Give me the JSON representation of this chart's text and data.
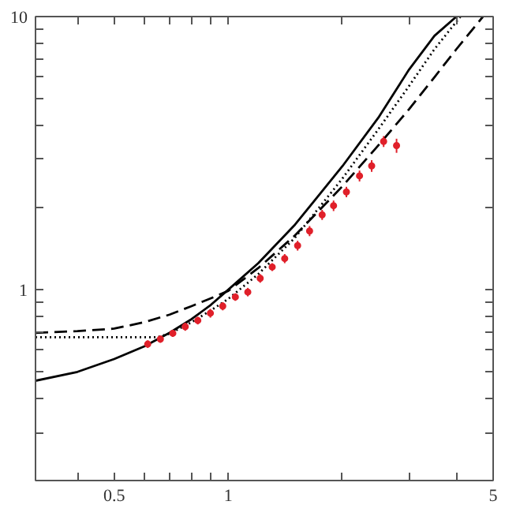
{
  "chart_data": {
    "type": "line",
    "log": "xy",
    "grid": false,
    "xlim": [
      0.31,
      5
    ],
    "ylim": [
      0.2,
      10
    ],
    "xticks": [
      {
        "value": 0.4,
        "label": null
      },
      0.5,
      {
        "value": 0.6,
        "label": null
      },
      {
        "value": 0.7,
        "label": null
      },
      {
        "value": 0.8,
        "label": null
      },
      {
        "value": 0.9,
        "label": null
      },
      1,
      {
        "value": 2,
        "label": null
      },
      {
        "value": 3,
        "label": null
      },
      {
        "value": 4,
        "label": null
      },
      5
    ],
    "yticks": [
      {
        "value": 0.3,
        "label": null
      },
      {
        "value": 0.4,
        "label": null
      },
      {
        "value": 0.5,
        "label": null
      },
      {
        "value": 0.6,
        "label": null
      },
      {
        "value": 0.7,
        "label": null
      },
      {
        "value": 0.8,
        "label": null
      },
      {
        "value": 0.9,
        "label": null
      },
      1,
      {
        "value": 2,
        "label": null
      },
      {
        "value": 3,
        "label": null
      },
      {
        "value": 4,
        "label": null
      },
      {
        "value": 5,
        "label": null
      },
      {
        "value": 6,
        "label": null
      },
      {
        "value": 7,
        "label": null
      },
      {
        "value": 8,
        "label": null
      },
      {
        "value": 9,
        "label": null
      },
      10
    ],
    "series": [
      {
        "line_style": "solid",
        "color": "#000000",
        "x": [
          0.31,
          0.4,
          0.5,
          0.6,
          0.7,
          0.8,
          0.9,
          1,
          1.2,
          1.5,
          2,
          2.5,
          3,
          3.5,
          4.0
        ],
        "values": [
          0.464,
          0.5,
          0.557,
          0.62,
          0.695,
          0.78,
          0.88,
          1.0,
          1.25,
          1.73,
          2.83,
          4.3,
          6.4,
          8.5,
          10
        ]
      },
      {
        "line_style": "dashed",
        "color": "#000000",
        "x": [
          0.31,
          0.4,
          0.5,
          0.6,
          0.7,
          0.8,
          0.9,
          1,
          1.2,
          1.5,
          2,
          2.5,
          3,
          3.5,
          4,
          4.7
        ],
        "values": [
          0.695,
          0.705,
          0.72,
          0.76,
          0.81,
          0.87,
          0.93,
          0.99,
          1.2,
          1.58,
          2.39,
          3.4,
          4.58,
          6.0,
          7.6,
          10
        ]
      },
      {
        "line_style": "dotted",
        "color": "#000000",
        "x": [
          0.31,
          0.4,
          0.5,
          0.6,
          0.65,
          0.7,
          0.8,
          0.9,
          1,
          1.2,
          1.5,
          2,
          2.5,
          3,
          3.5,
          4.1
        ],
        "values": [
          0.67,
          0.67,
          0.67,
          0.67,
          0.67,
          0.69,
          0.76,
          0.84,
          0.925,
          1.14,
          1.55,
          2.55,
          3.9,
          5.57,
          7.6,
          10
        ]
      },
      {
        "type": "scatter",
        "marker": "circle",
        "color": "#e0202a",
        "x": [
          0.613,
          0.662,
          0.714,
          0.77,
          0.831,
          0.897,
          0.967,
          1.044,
          1.126,
          1.214,
          1.306,
          1.409,
          1.524,
          1.639,
          1.769,
          1.896,
          2.05,
          2.22,
          2.39,
          2.57,
          2.78
        ],
        "values": [
          0.632,
          0.659,
          0.692,
          0.732,
          0.771,
          0.82,
          0.87,
          0.94,
          0.98,
          1.1,
          1.21,
          1.3,
          1.45,
          1.64,
          1.88,
          2.03,
          2.28,
          2.61,
          2.84,
          3.49,
          3.37
        ],
        "errors": [
          0.02,
          0.02,
          0.02,
          0.025,
          0.025,
          0.03,
          0.03,
          0.03,
          0.035,
          0.04,
          0.04,
          0.05,
          0.06,
          0.07,
          0.08,
          0.09,
          0.1,
          0.12,
          0.14,
          0.16,
          0.2
        ]
      }
    ]
  }
}
